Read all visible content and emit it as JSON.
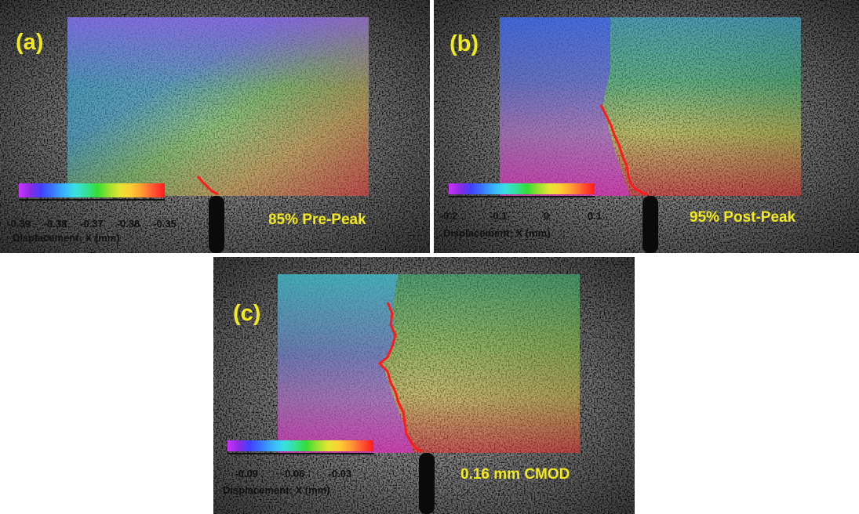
{
  "panels": [
    {
      "label": "(a)",
      "caption": "85% Pre-Peak",
      "colorbar": {
        "ticks": [
          "-0.39",
          "-0.38",
          "-0.37",
          "-0.36",
          "-0.35"
        ],
        "title": "Displacement: X (mm)"
      }
    },
    {
      "label": "(b)",
      "caption": "95% Post-Peak",
      "colorbar": {
        "ticks": [
          "-0.2",
          "-0.1",
          "0",
          "0.1"
        ],
        "title": "Displacement: X (mm)"
      }
    },
    {
      "label": "(c)",
      "caption": "0.16 mm CMOD",
      "colorbar": {
        "ticks": [
          "-0.09",
          "-0.06",
          "-0.03"
        ],
        "title": "Displacement: X (mm)"
      }
    }
  ],
  "colors": {
    "label_yellow": "#f2ea1e",
    "crack_red": "#ff1a1a",
    "colormap": [
      "#cc33ff",
      "#8a2be2",
      "#4040ff",
      "#3a78ff",
      "#39b3ff",
      "#38e0e0",
      "#36e09a",
      "#33dd33",
      "#99e030",
      "#e6e633",
      "#ffcc33",
      "#ff9933",
      "#ff5533",
      "#ff1a1a"
    ]
  }
}
